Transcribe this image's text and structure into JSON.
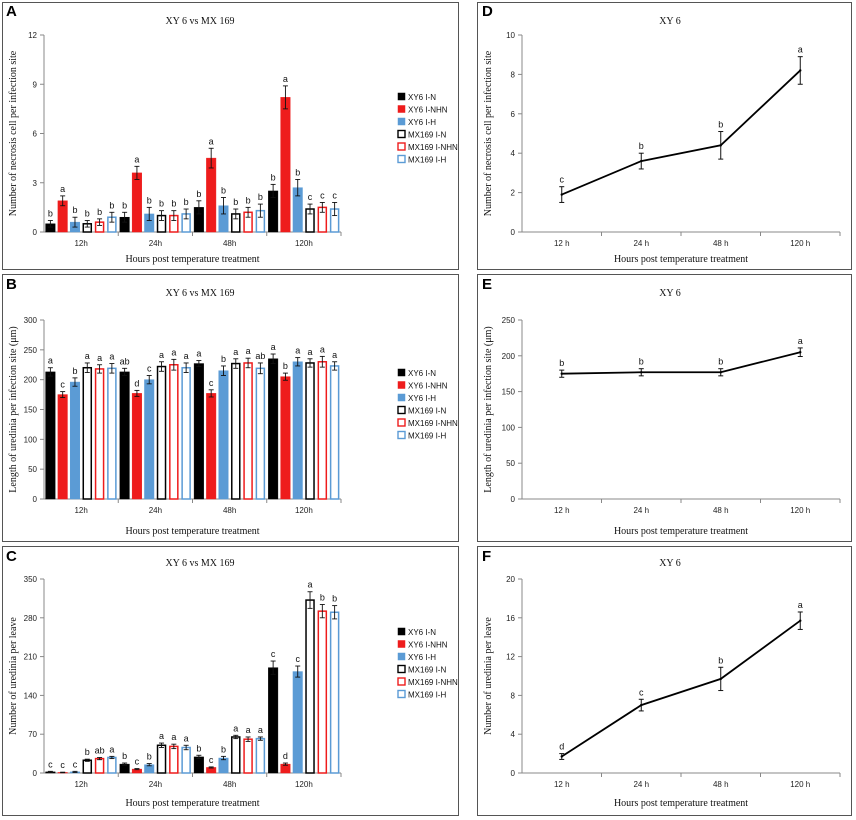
{
  "chart_data": [
    {
      "panel": "A",
      "type": "bar",
      "title": "XY 6 vs MX 169",
      "xlabel": "Hours post temperature treatment",
      "ylabel": "Number of necrosis cell per infection site",
      "ylim": [
        0,
        12
      ],
      "yticks": [
        "0",
        "3",
        "6",
        "9",
        "12"
      ],
      "categories": [
        "12h",
        "24h",
        "48h",
        "120h"
      ],
      "legend_position": "right",
      "series": [
        {
          "name": "XY6 I-N",
          "values": [
            0.5,
            0.9,
            1.5,
            2.5
          ],
          "errors": [
            0.2,
            0.3,
            0.4,
            0.4
          ],
          "letters": [
            "b",
            "b",
            "b",
            "b"
          ],
          "fill": "#000000",
          "stroke": "#000000"
        },
        {
          "name": "XY6 I-NHN",
          "values": [
            1.9,
            3.6,
            4.5,
            8.2
          ],
          "errors": [
            0.3,
            0.4,
            0.6,
            0.7
          ],
          "letters": [
            "a",
            "a",
            "a",
            "a"
          ],
          "fill": "#ee1c1c",
          "stroke": "#ee1c1c"
        },
        {
          "name": "XY6 I-H",
          "values": [
            0.6,
            1.1,
            1.6,
            2.7
          ],
          "errors": [
            0.3,
            0.4,
            0.5,
            0.5
          ],
          "letters": [
            "b",
            "b",
            "b",
            "b"
          ],
          "fill": "#5b9bd5",
          "stroke": "#5b9bd5"
        },
        {
          "name": "MX169 I-N",
          "values": [
            0.5,
            1.0,
            1.1,
            1.4
          ],
          "errors": [
            0.2,
            0.3,
            0.3,
            0.3
          ],
          "letters": [
            "b",
            "b",
            "b",
            "c"
          ],
          "fill": "#ffffff",
          "stroke": "#000000"
        },
        {
          "name": "MX169 I-NHN",
          "values": [
            0.6,
            1.0,
            1.2,
            1.5
          ],
          "errors": [
            0.2,
            0.3,
            0.3,
            0.3
          ],
          "letters": [
            "b",
            "b",
            "b",
            "c"
          ],
          "fill": "#ffffff",
          "stroke": "#ee1c1c"
        },
        {
          "name": "MX169 I-H",
          "values": [
            0.9,
            1.1,
            1.3,
            1.4
          ],
          "errors": [
            0.3,
            0.3,
            0.4,
            0.4
          ],
          "letters": [
            "b",
            "b",
            "b",
            "c"
          ],
          "fill": "#ffffff",
          "stroke": "#5b9bd5"
        }
      ]
    },
    {
      "panel": "B",
      "type": "bar",
      "title": "XY 6 vs MX 169",
      "xlabel": "Hours post temperature treatment",
      "ylabel": "Length of uredinia per infection site (μm)",
      "ylim": [
        0,
        300
      ],
      "yticks": [
        "0",
        "50",
        "100",
        "150",
        "200",
        "250",
        "300"
      ],
      "categories": [
        "12h",
        "24h",
        "48h",
        "120h"
      ],
      "legend_position": "right",
      "series": [
        {
          "name": "XY6 I-N",
          "values": [
            213,
            213,
            227,
            235
          ],
          "errors": [
            7,
            6,
            5,
            8
          ],
          "letters": [
            "a",
            "ab",
            "a",
            "a"
          ],
          "fill": "#000000",
          "stroke": "#000000"
        },
        {
          "name": "XY6 I-NHN",
          "values": [
            175,
            177,
            177,
            205
          ],
          "errors": [
            5,
            5,
            6,
            6
          ],
          "letters": [
            "c",
            "d",
            "c",
            "b"
          ],
          "fill": "#ee1c1c",
          "stroke": "#ee1c1c"
        },
        {
          "name": "XY6 I-H",
          "values": [
            196,
            200,
            215,
            230
          ],
          "errors": [
            7,
            7,
            8,
            7
          ],
          "letters": [
            "b",
            "c",
            "b",
            "a"
          ],
          "fill": "#5b9bd5",
          "stroke": "#5b9bd5"
        },
        {
          "name": "MX169 I-N",
          "values": [
            220,
            222,
            227,
            228
          ],
          "errors": [
            8,
            8,
            8,
            7
          ],
          "letters": [
            "a",
            "a",
            "a",
            "a"
          ],
          "fill": "#ffffff",
          "stroke": "#000000"
        },
        {
          "name": "MX169 I-NHN",
          "values": [
            218,
            225,
            228,
            230
          ],
          "errors": [
            7,
            9,
            8,
            9
          ],
          "letters": [
            "a",
            "a",
            "a",
            "a"
          ],
          "fill": "#ffffff",
          "stroke": "#ee1c1c"
        },
        {
          "name": "MX169 I-H",
          "values": [
            219,
            220,
            219,
            223
          ],
          "errors": [
            8,
            8,
            9,
            7
          ],
          "letters": [
            "a",
            "a",
            "ab",
            "a"
          ],
          "fill": "#ffffff",
          "stroke": "#5b9bd5"
        }
      ]
    },
    {
      "panel": "C",
      "type": "bar",
      "title": "XY 6 vs MX 169",
      "xlabel": "Hours post temperature treatment",
      "ylabel": "Number of uredinia per leave",
      "ylim": [
        0,
        350
      ],
      "yticks": [
        "0",
        "70",
        "140",
        "210",
        "280",
        "350"
      ],
      "categories": [
        "12h",
        "24h",
        "48h",
        "120h"
      ],
      "legend_position": "right",
      "series": [
        {
          "name": "XY6 I-N",
          "values": [
            2,
            16,
            29,
            190
          ],
          "errors": [
            1,
            2,
            3,
            12
          ],
          "letters": [
            "c",
            "b",
            "b",
            "c"
          ],
          "fill": "#000000",
          "stroke": "#000000"
        },
        {
          "name": "XY6 I-NHN",
          "values": [
            1,
            7,
            10,
            16
          ],
          "errors": [
            0.5,
            1,
            1,
            2
          ],
          "letters": [
            "c",
            "c",
            "c",
            "d"
          ],
          "fill": "#ee1c1c",
          "stroke": "#ee1c1c"
        },
        {
          "name": "XY6 I-H",
          "values": [
            2,
            15,
            27,
            183
          ],
          "errors": [
            1,
            2,
            3,
            10
          ],
          "letters": [
            "c",
            "b",
            "b",
            "c"
          ],
          "fill": "#5b9bd5",
          "stroke": "#5b9bd5"
        },
        {
          "name": "MX169 I-N",
          "values": [
            23,
            50,
            65,
            312
          ],
          "errors": [
            2,
            4,
            3,
            15
          ],
          "letters": [
            "b",
            "a",
            "a",
            "a"
          ],
          "fill": "#ffffff",
          "stroke": "#000000"
        },
        {
          "name": "MX169 I-NHN",
          "values": [
            26,
            48,
            61,
            292
          ],
          "errors": [
            2,
            4,
            4,
            12
          ],
          "letters": [
            "ab",
            "a",
            "a",
            "b"
          ],
          "fill": "#ffffff",
          "stroke": "#ee1c1c"
        },
        {
          "name": "MX169 I-H",
          "values": [
            28,
            46,
            62,
            290
          ],
          "errors": [
            2,
            4,
            3,
            12
          ],
          "letters": [
            "a",
            "a",
            "a",
            "b"
          ],
          "fill": "#ffffff",
          "stroke": "#5b9bd5"
        }
      ]
    },
    {
      "panel": "D",
      "type": "line",
      "title": "XY 6",
      "xlabel": "Hours post temperature treatment",
      "ylabel": "Number of necrosis cell per infection site",
      "ylim": [
        0,
        10
      ],
      "yticks": [
        "0",
        "2",
        "4",
        "6",
        "8",
        "10"
      ],
      "x": [
        "12 h",
        "24 h",
        "48 h",
        "120 h"
      ],
      "values": [
        1.9,
        3.6,
        4.4,
        8.2
      ],
      "errors": [
        0.4,
        0.4,
        0.7,
        0.7
      ],
      "letters": [
        "c",
        "b",
        "b",
        "a"
      ]
    },
    {
      "panel": "E",
      "type": "line",
      "title": "XY 6",
      "xlabel": "Hours post temperature treatment",
      "ylabel": "Length of uredinia per infection site (μm)",
      "ylim": [
        0,
        250
      ],
      "yticks": [
        "0",
        "50",
        "100",
        "150",
        "200",
        "250"
      ],
      "x": [
        "12 h",
        "24 h",
        "48 h",
        "120 h"
      ],
      "values": [
        175,
        177,
        177,
        205
      ],
      "errors": [
        5,
        5,
        5,
        6
      ],
      "letters": [
        "b",
        "b",
        "b",
        "a"
      ]
    },
    {
      "panel": "F",
      "type": "line",
      "title": "XY 6",
      "xlabel": "Hours post temperature treatment",
      "ylabel": "Number of uredinia per leave",
      "ylim": [
        0,
        20
      ],
      "yticks": [
        "0",
        "4",
        "8",
        "12",
        "16",
        "20"
      ],
      "x": [
        "12 h",
        "24 h",
        "48 h",
        "120 h"
      ],
      "values": [
        1.7,
        7.0,
        9.7,
        15.7
      ],
      "errors": [
        0.3,
        0.6,
        1.2,
        0.9
      ],
      "letters": [
        "d",
        "c",
        "b",
        "a"
      ]
    }
  ]
}
